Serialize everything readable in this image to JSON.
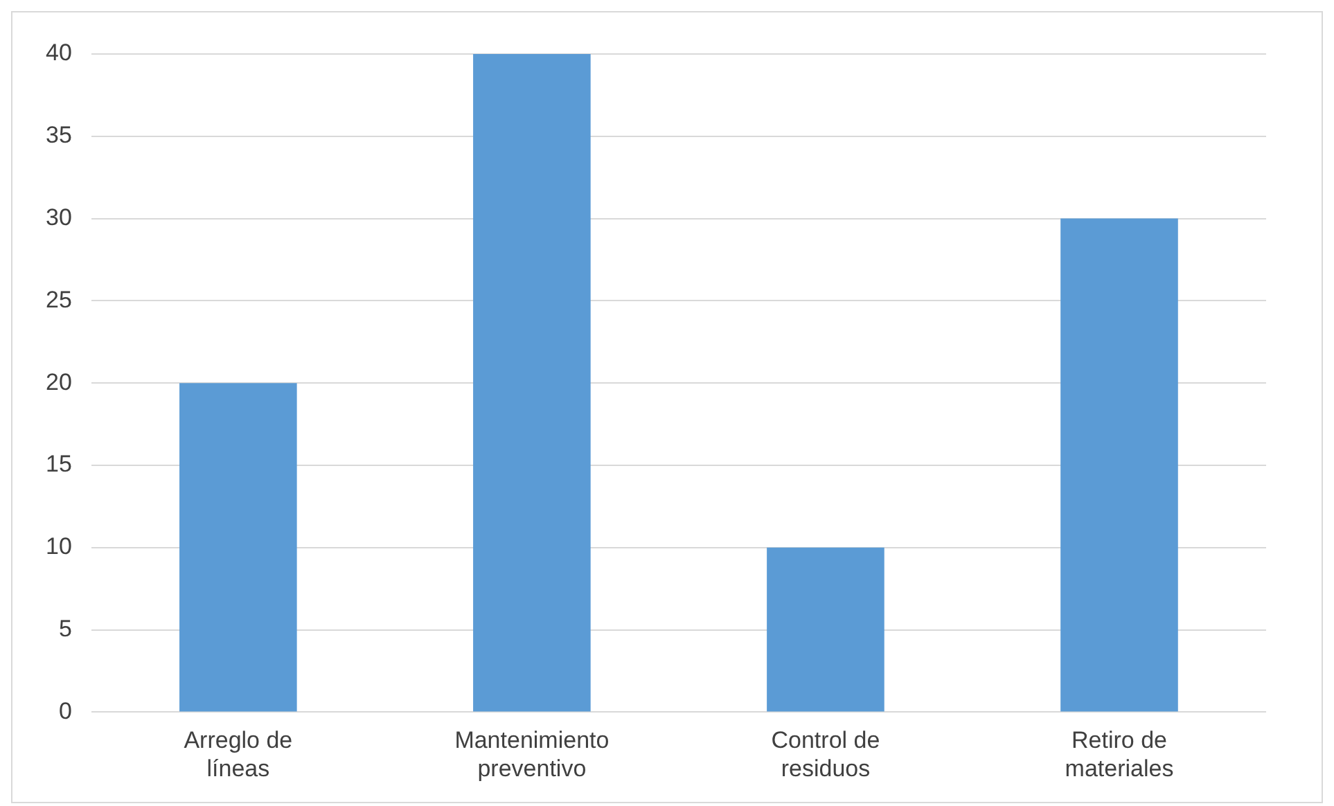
{
  "chart_data": {
    "type": "bar",
    "categories": [
      "Arreglo de líneas",
      "Mantenimiento preventivo",
      "Control de residuos",
      "Retiro de materiales"
    ],
    "values": [
      20,
      40,
      10,
      30
    ],
    "color": "#5b9bd5",
    "ylim": [
      0,
      40
    ],
    "yticks": [
      0,
      5,
      10,
      15,
      20,
      25,
      30,
      35,
      40
    ],
    "grid": "y"
  }
}
